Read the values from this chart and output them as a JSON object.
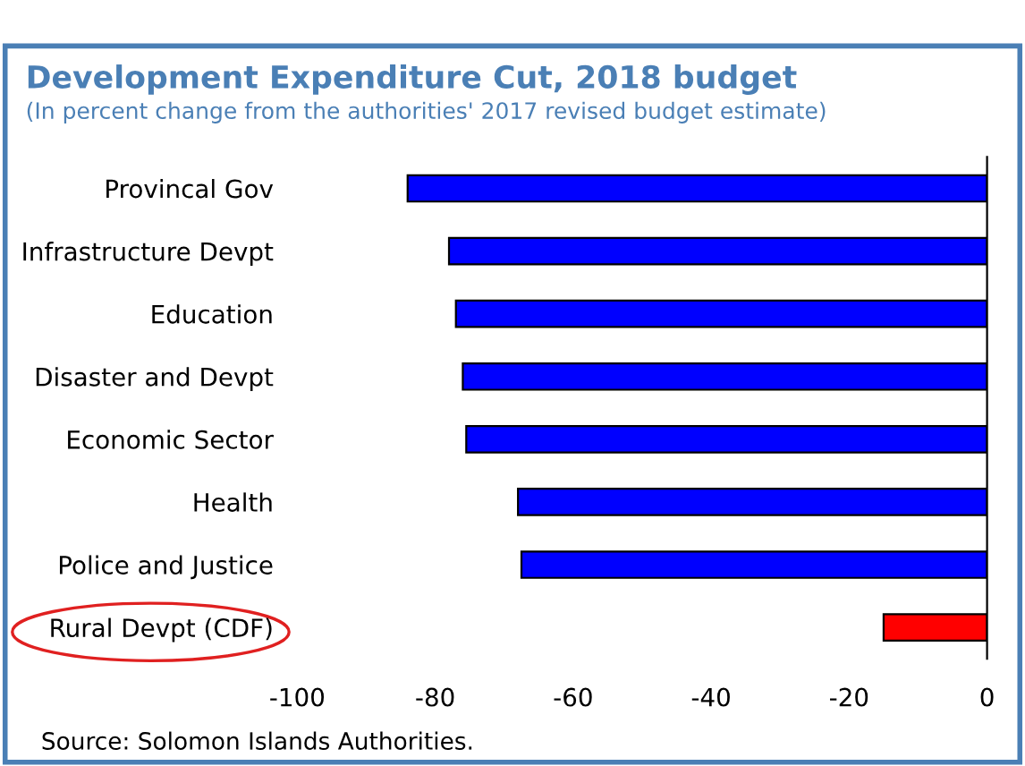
{
  "chart_data": {
    "type": "bar",
    "orientation": "horizontal",
    "title": "Development Expenditure Cut, 2018 budget",
    "subtitle": "(In percent change from the authorities' 2017 revised budget estimate)",
    "categories": [
      "Provincal Gov",
      "Infrastructure Devpt",
      "Education",
      "Disaster and Devpt",
      "Economic Sector",
      "Health",
      "Police and Justice",
      "Rural Devpt (CDF)"
    ],
    "values": [
      -84,
      -78,
      -77,
      -76,
      -75.5,
      -68,
      -67.5,
      -15
    ],
    "colors": [
      "#0000ff",
      "#0000ff",
      "#0000ff",
      "#0000ff",
      "#0000ff",
      "#0000ff",
      "#0000ff",
      "#ff0000"
    ],
    "xlim": [
      -100,
      0
    ],
    "xticks": [
      -100,
      -80,
      -60,
      -40,
      -20,
      0
    ],
    "grid": false,
    "legend": false,
    "annotations": [
      "Source: Solomon Islands Authorities."
    ]
  }
}
